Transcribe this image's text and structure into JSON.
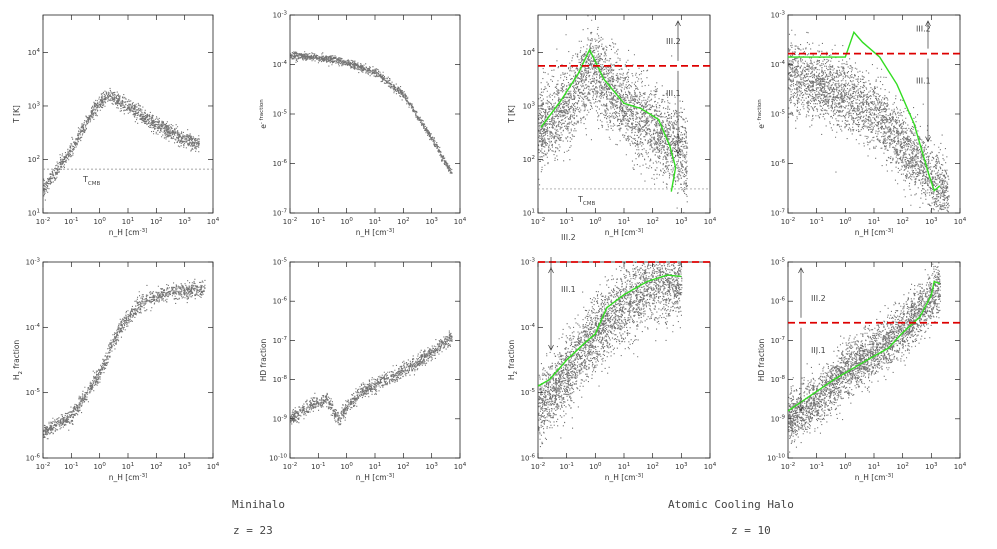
{
  "figure": {
    "captions": {
      "left_title": "Minihalo",
      "left_redshift": "z = 23",
      "right_title": "Atomic Cooling Halo",
      "right_redshift": "z = 10"
    },
    "colors": {
      "scatter": "#000000",
      "mean_line": "#33dd22",
      "threshold": "#dd0000",
      "cmb_line": "#888888"
    }
  },
  "chart_data": [
    {
      "id": "mh-temp",
      "type": "scatter",
      "group": "Minihalo",
      "xlabel": "n_H [cm^-3]",
      "ylabel": "T [K]",
      "xlim_log10": [
        -2,
        4
      ],
      "ylim_log10": [
        1,
        4.7
      ],
      "xtick_labels": [
        "10^-2",
        "10^-1",
        "10^0",
        "10^1",
        "10^2",
        "10^3",
        "10^4"
      ],
      "ytick_labels": [
        "10^1",
        "10^2",
        "10^3",
        "10^4"
      ],
      "ytick_exps": [
        1,
        2,
        3,
        4
      ],
      "ridge": [
        [
          -2,
          1.45
        ],
        [
          -1,
          2.2
        ],
        [
          -0.2,
          2.95
        ],
        [
          0.3,
          3.2
        ],
        [
          1,
          3.0
        ],
        [
          2,
          2.65
        ],
        [
          3,
          2.38
        ],
        [
          3.5,
          2.3
        ]
      ],
      "spread": 0.07,
      "density": 1400,
      "cmb_level_log10": 1.82,
      "cmb_label": "T_CMB"
    },
    {
      "id": "mh-e",
      "type": "scatter",
      "group": "Minihalo",
      "xlabel": "n_H [cm^-3]",
      "ylabel": "e^- fraction",
      "xlim_log10": [
        -2,
        4
      ],
      "ylim_log10": [
        -7,
        -3
      ],
      "xtick_labels": [
        "10^-2",
        "10^-1",
        "10^0",
        "10^1",
        "10^2",
        "10^3",
        "10^4"
      ],
      "ytick_labels": [
        "10^-7",
        "10^-6",
        "10^-5",
        "10^-4",
        "10^-3"
      ],
      "ytick_exps": [
        -7,
        -6,
        -5,
        -4,
        -3
      ],
      "ridge": [
        [
          -2,
          -3.8
        ],
        [
          -1,
          -3.85
        ],
        [
          0,
          -3.95
        ],
        [
          1,
          -4.15
        ],
        [
          2,
          -4.6
        ],
        [
          3,
          -5.5
        ],
        [
          3.7,
          -6.2
        ]
      ],
      "spread": 0.04,
      "density": 1200
    },
    {
      "id": "mh-h2",
      "type": "scatter",
      "group": "Minihalo",
      "xlabel": "n_H [cm^-3]",
      "ylabel": "H_2 fraction",
      "xlim_log10": [
        -2,
        4
      ],
      "ylim_log10": [
        -6,
        -3
      ],
      "xtick_labels": [
        "10^-2",
        "10^-1",
        "10^0",
        "10^1",
        "10^2",
        "10^3",
        "10^4"
      ],
      "ytick_labels": [
        "10^-6",
        "10^-5",
        "10^-4",
        "10^-3"
      ],
      "ytick_exps": [
        -6,
        -5,
        -4,
        -3
      ],
      "ridge": [
        [
          -2,
          -5.6
        ],
        [
          -1,
          -5.35
        ],
        [
          0,
          -4.7
        ],
        [
          0.7,
          -4.0
        ],
        [
          1.5,
          -3.6
        ],
        [
          2.5,
          -3.45
        ],
        [
          3.7,
          -3.4
        ]
      ],
      "spread": 0.06,
      "density": 1300
    },
    {
      "id": "mh-hd",
      "type": "scatter",
      "group": "Minihalo",
      "xlabel": "n_H [cm^-3]",
      "ylabel": "HD fraction",
      "xlim_log10": [
        -2,
        4
      ],
      "ylim_log10": [
        -10,
        -5
      ],
      "xtick_labels": [
        "10^-2",
        "10^-1",
        "10^0",
        "10^1",
        "10^2",
        "10^3",
        "10^4"
      ],
      "ytick_labels": [
        "10^-10",
        "10^-9",
        "10^-8",
        "10^-7",
        "10^-6",
        "10^-5"
      ],
      "ytick_exps": [
        -10,
        -9,
        -8,
        -7,
        -6,
        -5
      ],
      "ridge": [
        [
          -2,
          -9.0
        ],
        [
          -1.2,
          -8.6
        ],
        [
          -0.7,
          -8.5
        ],
        [
          -0.3,
          -9.0
        ],
        [
          0,
          -8.7
        ],
        [
          0.5,
          -8.3
        ],
        [
          1.5,
          -7.95
        ],
        [
          2.5,
          -7.55
        ],
        [
          3.7,
          -6.9
        ]
      ],
      "spread": 0.09,
      "density": 1300
    },
    {
      "id": "ach-temp",
      "type": "scatter",
      "group": "Atomic Cooling Halo",
      "xlabel": "n_H [cm^-3]",
      "ylabel": "T [K]",
      "xlim_log10": [
        -2,
        4
      ],
      "ylim_log10": [
        1,
        4.7
      ],
      "xtick_labels": [
        "10^-2",
        "10^-1",
        "10^0",
        "10^1",
        "10^2",
        "10^3",
        "10^4"
      ],
      "ytick_labels": [
        "10^1",
        "10^2",
        "10^3",
        "10^4"
      ],
      "ytick_exps": [
        1,
        2,
        3,
        4
      ],
      "ridge": [
        [
          -2,
          2.5
        ],
        [
          -1,
          3.0
        ],
        [
          -0.2,
          3.7
        ],
        [
          0.5,
          3.3
        ],
        [
          1.5,
          2.8
        ],
        [
          2.5,
          2.4
        ],
        [
          3.2,
          2.0
        ]
      ],
      "spread": 0.38,
      "density": 3200,
      "mean_line": [
        [
          -1.9,
          2.6
        ],
        [
          -1.2,
          3.1
        ],
        [
          -0.6,
          3.6
        ],
        [
          -0.2,
          4.05
        ],
        [
          0.3,
          3.5
        ],
        [
          1.0,
          3.05
        ],
        [
          1.6,
          2.95
        ],
        [
          2.2,
          2.75
        ],
        [
          2.6,
          2.25
        ],
        [
          2.8,
          1.85
        ],
        [
          2.65,
          1.4
        ]
      ],
      "threshold_log10": 3.75,
      "cmb_level_log10": 1.45,
      "cmb_label": "T_CMB",
      "region_labels": [
        "III.2",
        "III.1"
      ]
    },
    {
      "id": "ach-e",
      "type": "scatter",
      "group": "Atomic Cooling Halo",
      "xlabel": "n_H [cm^-3]",
      "ylabel": "e^- fraction",
      "xlim_log10": [
        -2,
        4
      ],
      "ylim_log10": [
        -7,
        -3
      ],
      "xtick_labels": [
        "10^-2",
        "10^-1",
        "10^0",
        "10^1",
        "10^2",
        "10^3",
        "10^4"
      ],
      "ytick_labels": [
        "10^-7",
        "10^-6",
        "10^-5",
        "10^-4",
        "10^-3"
      ],
      "ytick_exps": [
        -7,
        -6,
        -5,
        -4,
        -3
      ],
      "ridge": [
        [
          -2,
          -4.2
        ],
        [
          -1,
          -4.4
        ],
        [
          0,
          -4.6
        ],
        [
          1,
          -4.95
        ],
        [
          2,
          -5.6
        ],
        [
          3,
          -6.3
        ],
        [
          3.6,
          -6.7
        ]
      ],
      "spread": 0.34,
      "density": 3000,
      "mean_line": [
        [
          -2,
          -3.85
        ],
        [
          -1,
          -3.85
        ],
        [
          0,
          -3.85
        ],
        [
          0.3,
          -3.35
        ],
        [
          0.6,
          -3.55
        ],
        [
          1.2,
          -3.85
        ],
        [
          1.8,
          -4.4
        ],
        [
          2.4,
          -5.2
        ],
        [
          2.9,
          -6.2
        ],
        [
          3.1,
          -6.55
        ],
        [
          3.3,
          -6.45
        ]
      ],
      "threshold_log10": -3.78,
      "region_labels": [
        "III.2",
        "III.1"
      ]
    },
    {
      "id": "ach-h2",
      "type": "scatter",
      "group": "Atomic Cooling Halo",
      "xlabel": "n_H [cm^-3]",
      "ylabel": "H_2 fraction",
      "xlim_log10": [
        -2,
        4
      ],
      "ylim_log10": [
        -6,
        -3
      ],
      "xtick_labels": [
        "10^-2",
        "10^-1",
        "10^0",
        "10^1",
        "10^2",
        "10^3",
        "10^4"
      ],
      "ytick_labels": [
        "10^-6",
        "10^-5",
        "10^-4",
        "10^-3"
      ],
      "ytick_exps": [
        -6,
        -5,
        -4,
        -3
      ],
      "ridge": [
        [
          -2,
          -5.2
        ],
        [
          -1,
          -4.7
        ],
        [
          0,
          -4.1
        ],
        [
          1,
          -3.65
        ],
        [
          2,
          -3.35
        ],
        [
          3,
          -3.3
        ]
      ],
      "spread": 0.28,
      "density": 3000,
      "mean_line": [
        [
          -2,
          -4.9
        ],
        [
          -1.6,
          -4.8
        ],
        [
          -1,
          -4.5
        ],
        [
          -0.4,
          -4.25
        ],
        [
          0,
          -4.1
        ],
        [
          0.4,
          -3.7
        ],
        [
          1,
          -3.5
        ],
        [
          1.8,
          -3.3
        ],
        [
          2.5,
          -3.2
        ],
        [
          3.0,
          -3.22
        ]
      ],
      "threshold_log10": -3.0,
      "region_labels": [
        "III.2",
        "III.1"
      ]
    },
    {
      "id": "ach-hd",
      "type": "scatter",
      "group": "Atomic Cooling Halo",
      "xlabel": "n_H [cm^-3]",
      "ylabel": "HD fraction",
      "xlim_log10": [
        -2,
        4
      ],
      "ylim_log10": [
        -10,
        -5
      ],
      "xtick_labels": [
        "10^-2",
        "10^-1",
        "10^0",
        "10^1",
        "10^2",
        "10^3",
        "10^4"
      ],
      "ytick_labels": [
        "10^-10",
        "10^-9",
        "10^-8",
        "10^-7",
        "10^-6",
        "10^-5"
      ],
      "ytick_exps": [
        -10,
        -9,
        -8,
        -7,
        -6,
        -5
      ],
      "ridge": [
        [
          -2,
          -9.0
        ],
        [
          -1,
          -8.5
        ],
        [
          0,
          -7.8
        ],
        [
          1,
          -7.3
        ],
        [
          2,
          -6.7
        ],
        [
          3,
          -5.9
        ],
        [
          3.3,
          -5.6
        ]
      ],
      "spread": 0.33,
      "density": 3000,
      "mean_line": [
        [
          -2,
          -8.8
        ],
        [
          -1.5,
          -8.55
        ],
        [
          -1,
          -8.3
        ],
        [
          -0.4,
          -8.0
        ],
        [
          0.3,
          -7.7
        ],
        [
          1,
          -7.4
        ],
        [
          1.5,
          -7.2
        ],
        [
          2,
          -6.8
        ],
        [
          2.6,
          -6.4
        ],
        [
          3.0,
          -5.85
        ],
        [
          3.1,
          -5.5
        ],
        [
          3.3,
          -5.55
        ]
      ],
      "threshold_log10": -6.55,
      "region_labels": [
        "III.2",
        "III.1"
      ]
    }
  ]
}
